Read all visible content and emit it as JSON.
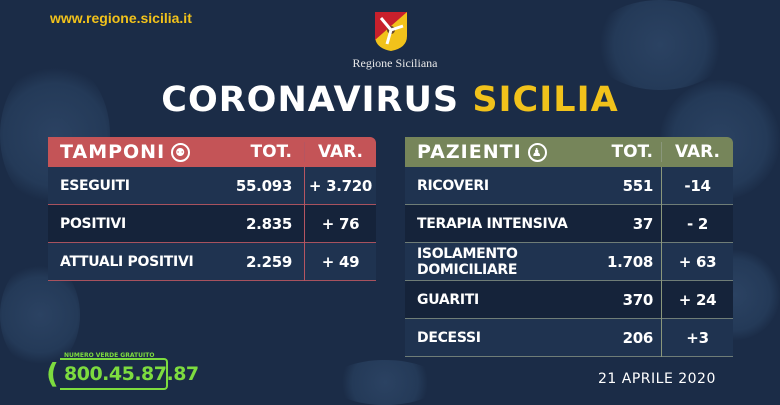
{
  "header": {
    "url": "www.regione.sicilia.it",
    "region": "Regione Siciliana",
    "title_white": "CORONAVIRUS",
    "title_yellow": "SICILIA"
  },
  "colors": {
    "background": "#1b2c47",
    "accent_yellow": "#f1c21b",
    "tamponi_header": "#c45457",
    "pazienti_header": "#76855a",
    "phone_green": "#7ddc3f"
  },
  "tamponi": {
    "title": "TAMPONI",
    "icon": "swab-icon",
    "tot_label": "TOT.",
    "var_label": "VAR.",
    "rows": [
      {
        "label": "ESEGUITI",
        "tot": "55.093",
        "var": "+ 3.720"
      },
      {
        "label": "POSITIVI",
        "tot": "2.835",
        "var": "+ 76"
      },
      {
        "label": "ATTUALI POSITIVI",
        "tot": "2.259",
        "var": "+ 49"
      }
    ]
  },
  "pazienti": {
    "title": "PAZIENTI",
    "icon": "person-icon",
    "tot_label": "TOT.",
    "var_label": "VAR.",
    "rows": [
      {
        "label": "RICOVERI",
        "tot": "551",
        "var": "-14"
      },
      {
        "label": "TERAPIA INTENSIVA",
        "tot": "37",
        "var": "- 2"
      },
      {
        "label": "ISOLAMENTO DOMICILIARE",
        "tot": "1.708",
        "var": "+ 63"
      },
      {
        "label": "GUARITI",
        "tot": "370",
        "var": "+ 24"
      },
      {
        "label": "DECESSI",
        "tot": "206",
        "var": "+3"
      }
    ]
  },
  "phone": {
    "caption": "NUMERO VERDE GRATUITO",
    "number": "800.45.87.87"
  },
  "date": "21 APRILE 2020"
}
